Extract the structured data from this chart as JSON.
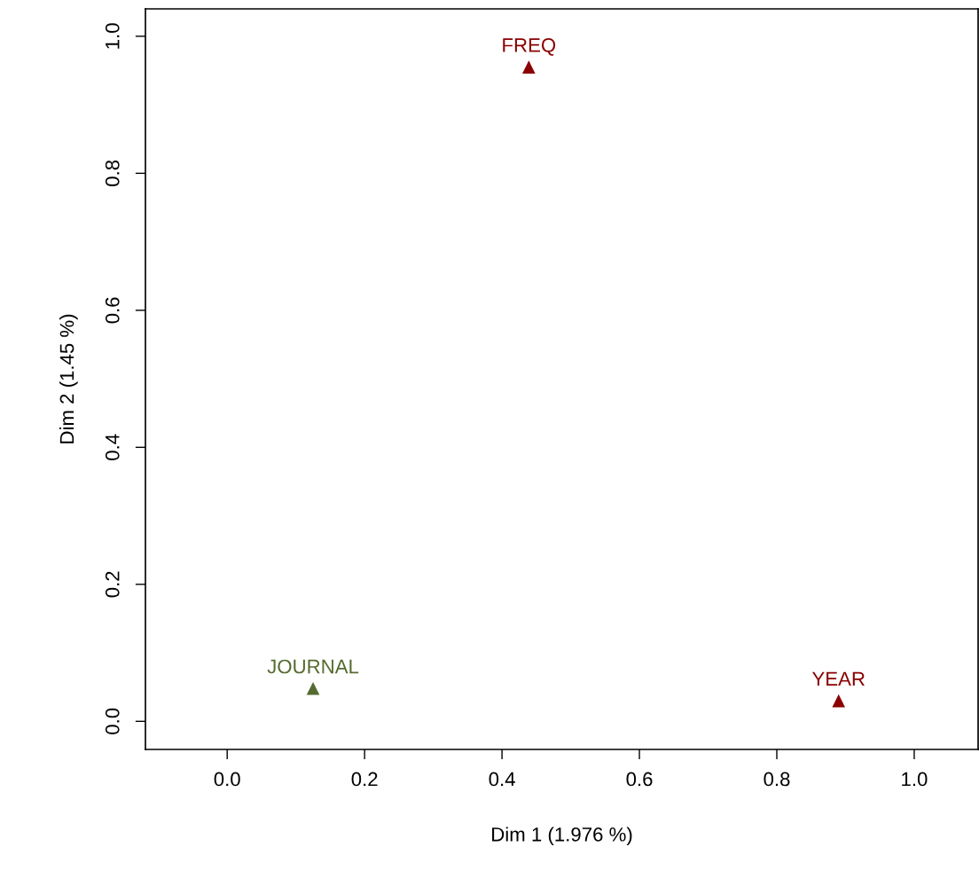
{
  "chart_data": {
    "type": "scatter",
    "xlabel": "Dim 1 (1.976 %)",
    "ylabel": "Dim 2 (1.45 %)",
    "xlim": [
      -0.119,
      1.093
    ],
    "ylim": [
      -0.041,
      1.04
    ],
    "xticks": [
      {
        "value": 0,
        "label": "0.0"
      },
      {
        "value": 0.2,
        "label": "0.2"
      },
      {
        "value": 0.4,
        "label": "0.4"
      },
      {
        "value": 0.6,
        "label": "0.6"
      },
      {
        "value": 0.8,
        "label": "0.8"
      },
      {
        "value": 1,
        "label": "1.0"
      }
    ],
    "yticks": [
      {
        "value": 0,
        "label": "0.0"
      },
      {
        "value": 0.2,
        "label": "0.2"
      },
      {
        "value": 0.4,
        "label": "0.4"
      },
      {
        "value": 0.6,
        "label": "0.6"
      },
      {
        "value": 0.8,
        "label": "0.8"
      },
      {
        "value": 1,
        "label": "1.0"
      }
    ],
    "marker": "triangle",
    "grid": false,
    "legend": false,
    "series": [
      {
        "name": "JOURNAL",
        "color": "#556b2f",
        "x": [
          0.125
        ],
        "values": [
          0.048
        ]
      },
      {
        "name": "FREQ",
        "color": "#8b0000",
        "x": [
          0.439
        ],
        "values": [
          0.955
        ]
      },
      {
        "name": "YEAR",
        "color": "#8b0000",
        "x": [
          0.89
        ],
        "values": [
          0.03
        ]
      }
    ]
  }
}
